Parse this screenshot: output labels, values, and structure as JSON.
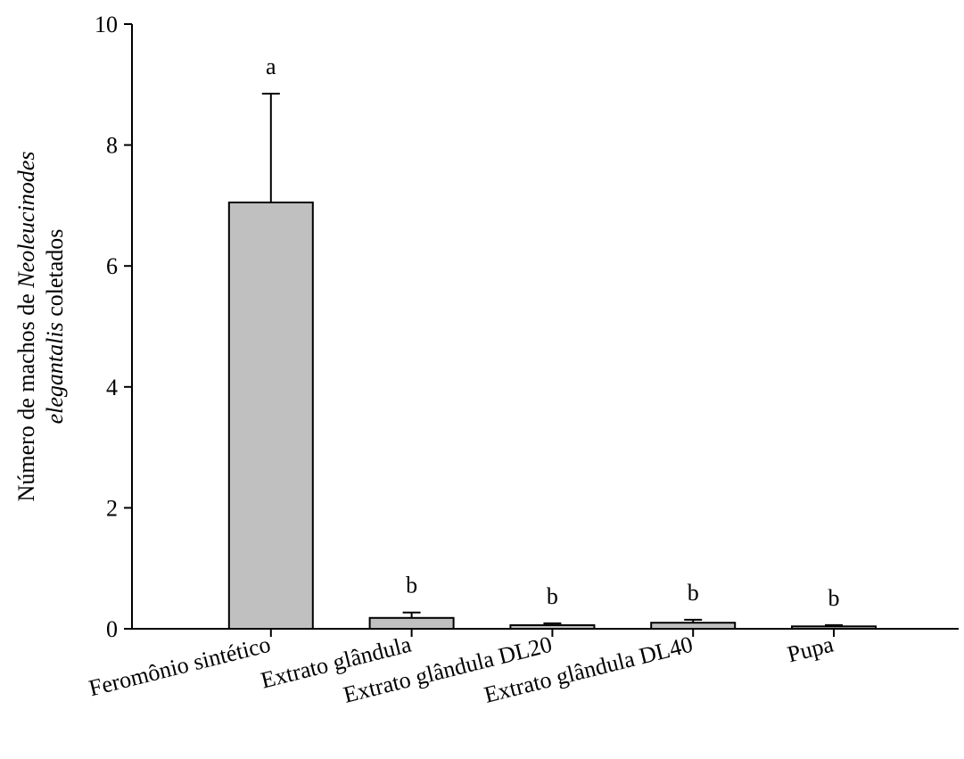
{
  "chart_data": {
    "type": "bar",
    "title": "",
    "xlabel": "",
    "ylabel": {
      "line1_prefix": "Número de machos de ",
      "line1_italic": "Neoleucinodes",
      "line2_italic": "elegantalis",
      "line2_suffix": " coletados"
    },
    "categories": [
      "Feromônio sintético",
      "Extrato glândula",
      "Extrato glândula DL20",
      "Extrato glândula DL40",
      "Pupa"
    ],
    "values": [
      7.05,
      0.18,
      0.06,
      0.1,
      0.04
    ],
    "error_upper": [
      8.85,
      0.27,
      0.09,
      0.15,
      0.06
    ],
    "significance_letters": [
      "a",
      "b",
      "b",
      "b",
      "b"
    ],
    "ylim": [
      0,
      10
    ],
    "yticks": [
      0,
      2,
      4,
      6,
      8,
      10
    ],
    "grid": false,
    "legend": "none",
    "bar_color": "#c0c0c0",
    "edge_color": "#000000"
  }
}
